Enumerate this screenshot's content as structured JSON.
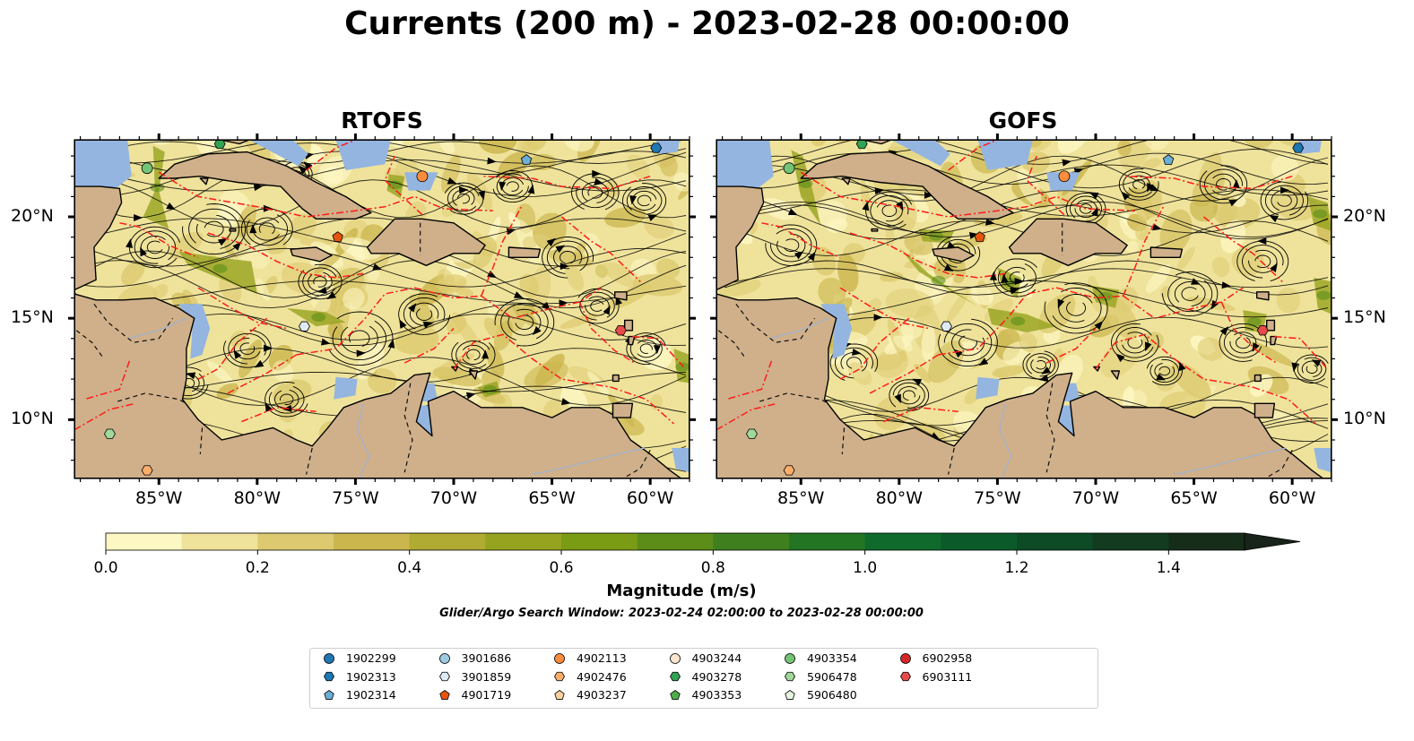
{
  "title": "Currents (200 m) - 2023-02-28 00:00:00",
  "panels": [
    {
      "title": "RTOFS"
    },
    {
      "title": "GOFS"
    }
  ],
  "lon_ticks": [
    "85°W",
    "80°W",
    "75°W",
    "70°W",
    "65°W",
    "60°W"
  ],
  "lat_ticks": [
    "20°N",
    "15°N",
    "10°N"
  ],
  "colorbar": {
    "label": "Magnitude (m/s)",
    "ticks": [
      "0.0",
      "0.2",
      "0.4",
      "0.6",
      "0.8",
      "1.0",
      "1.2",
      "1.4"
    ],
    "range": [
      0,
      1.5
    ],
    "extend": "max",
    "colors": [
      "#fdf7c4",
      "#efe39b",
      "#ddca70",
      "#cbb64e",
      "#b0ab32",
      "#96a31f",
      "#7a9b14",
      "#5b8d18",
      "#3f7f1e",
      "#237524",
      "#106a2b",
      "#0b5b2a",
      "#0c4b25",
      "#123b20",
      "#162d1a",
      "#18231a"
    ]
  },
  "search_window": "Glider/Argo Search Window: 2023-02-24 02:00:00 to 2023-02-28 00:00:00",
  "colors": {
    "land": "#cfb08a",
    "shallow_water": "#94b5e0",
    "eez_lines": "#ff1a1a",
    "borders": "#000000"
  },
  "legend": [
    {
      "id": "1902299",
      "marker": "circle",
      "color": "#1f77b4"
    },
    {
      "id": "1902313",
      "marker": "hexagon",
      "color": "#1f77b4"
    },
    {
      "id": "1902314",
      "marker": "pentagon",
      "color": "#6baed6"
    },
    {
      "id": "3901686",
      "marker": "circle",
      "color": "#9ecae1"
    },
    {
      "id": "3901859",
      "marker": "hexagon",
      "color": "#deebf7"
    },
    {
      "id": "4901719",
      "marker": "pentagon",
      "color": "#e6550d"
    },
    {
      "id": "4902113",
      "marker": "circle",
      "color": "#fd8d3c"
    },
    {
      "id": "4902476",
      "marker": "hexagon",
      "color": "#fdae6b"
    },
    {
      "id": "4903237",
      "marker": "pentagon",
      "color": "#fdd0a2"
    },
    {
      "id": "4903244",
      "marker": "circle",
      "color": "#fee6ce"
    },
    {
      "id": "4903278",
      "marker": "hexagon",
      "color": "#31a354"
    },
    {
      "id": "4903353",
      "marker": "pentagon",
      "color": "#4daf4a"
    },
    {
      "id": "4903354",
      "marker": "circle",
      "color": "#74c476"
    },
    {
      "id": "5906478",
      "marker": "hexagon",
      "color": "#a1d99b"
    },
    {
      "id": "5906480",
      "marker": "pentagon",
      "color": "#e5f5e0"
    },
    {
      "id": "6902958",
      "marker": "circle",
      "color": "#d62728"
    },
    {
      "id": "6903111",
      "marker": "hexagon",
      "color": "#e84a4a"
    }
  ],
  "floats": [
    {
      "id": "4903354",
      "lon": -85.6,
      "lat": 22.4
    },
    {
      "id": "4903278",
      "lon": -81.9,
      "lat": 23.6
    },
    {
      "id": "4902113",
      "lon": -71.6,
      "lat": 22.0
    },
    {
      "id": "1902314",
      "lon": -66.3,
      "lat": 22.8
    },
    {
      "id": "1902313",
      "lon": -59.7,
      "lat": 23.4
    },
    {
      "id": "4901719",
      "lon": -75.9,
      "lat": 19.0
    },
    {
      "id": "3901859",
      "lon": -77.6,
      "lat": 14.6
    },
    {
      "id": "6903111",
      "lon": -61.5,
      "lat": 14.4
    },
    {
      "id": "5906478",
      "lon": -87.5,
      "lat": 9.3
    },
    {
      "id": "4902476",
      "lon": -85.6,
      "lat": 7.5
    }
  ]
}
